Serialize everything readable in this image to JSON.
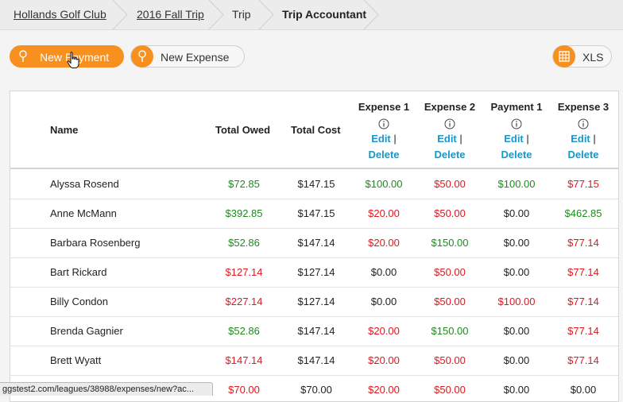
{
  "breadcrumb": {
    "items": [
      {
        "label": "Hollands Golf Club"
      },
      {
        "label": "2016 Fall Trip"
      },
      {
        "label": "Trip"
      },
      {
        "label": "Trip Accountant"
      }
    ]
  },
  "actions": {
    "new_payment": "New Payment",
    "new_expense": "New Expense",
    "xls": "XLS"
  },
  "colors": {
    "accent": "#f7901e",
    "link": "#1a96c9",
    "positive": "#1d8a1d",
    "negative": "#e0171f"
  },
  "table": {
    "headers": {
      "name": "Name",
      "total_owed": "Total Owed",
      "total_cost": "Total Cost"
    },
    "expense_columns": [
      {
        "title": "Expense 1",
        "edit": "Edit",
        "sep": "|",
        "delete": "Delete"
      },
      {
        "title": "Expense 2",
        "edit": "Edit",
        "sep": "|",
        "delete": "Delete"
      },
      {
        "title": "Payment 1",
        "edit": "Edit",
        "sep": "|",
        "delete": "Delete"
      },
      {
        "title": "Expense 3",
        "edit": "Edit",
        "sep": "|",
        "delete": "Delete"
      }
    ],
    "rows": [
      {
        "name": "Alyssa Rosend",
        "owed": "$72.85",
        "owed_color": "green",
        "cost": "$147.15",
        "vals": [
          [
            "$100.00",
            "green"
          ],
          [
            "$50.00",
            "red"
          ],
          [
            "$100.00",
            "green"
          ],
          [
            "$77.15",
            "red"
          ]
        ]
      },
      {
        "name": "Anne McMann",
        "owed": "$392.85",
        "owed_color": "green",
        "cost": "$147.15",
        "vals": [
          [
            "$20.00",
            "red"
          ],
          [
            "$50.00",
            "red"
          ],
          [
            "$0.00",
            "black"
          ],
          [
            "$462.85",
            "green"
          ]
        ]
      },
      {
        "name": "Barbara Rosenberg",
        "owed": "$52.86",
        "owed_color": "green",
        "cost": "$147.14",
        "vals": [
          [
            "$20.00",
            "red"
          ],
          [
            "$150.00",
            "green"
          ],
          [
            "$0.00",
            "black"
          ],
          [
            "$77.14",
            "red"
          ]
        ]
      },
      {
        "name": "Bart Rickard",
        "owed": "$127.14",
        "owed_color": "red",
        "cost": "$127.14",
        "vals": [
          [
            "$0.00",
            "black"
          ],
          [
            "$50.00",
            "red"
          ],
          [
            "$0.00",
            "black"
          ],
          [
            "$77.14",
            "red"
          ]
        ]
      },
      {
        "name": "Billy Condon",
        "owed": "$227.14",
        "owed_color": "red",
        "cost": "$127.14",
        "vals": [
          [
            "$0.00",
            "black"
          ],
          [
            "$50.00",
            "red"
          ],
          [
            "$100.00",
            "red"
          ],
          [
            "$77.14",
            "red"
          ]
        ]
      },
      {
        "name": "Brenda Gagnier",
        "owed": "$52.86",
        "owed_color": "green",
        "cost": "$147.14",
        "vals": [
          [
            "$20.00",
            "red"
          ],
          [
            "$150.00",
            "green"
          ],
          [
            "$0.00",
            "black"
          ],
          [
            "$77.14",
            "red"
          ]
        ]
      },
      {
        "name": "Brett Wyatt",
        "owed": "$147.14",
        "owed_color": "red",
        "cost": "$147.14",
        "vals": [
          [
            "$20.00",
            "red"
          ],
          [
            "$50.00",
            "red"
          ],
          [
            "$0.00",
            "black"
          ],
          [
            "$77.14",
            "red"
          ]
        ]
      },
      {
        "name": "",
        "owed": "$70.00",
        "owed_color": "red",
        "cost": "$70.00",
        "vals": [
          [
            "$20.00",
            "red"
          ],
          [
            "$50.00",
            "red"
          ],
          [
            "$0.00",
            "black"
          ],
          [
            "$0.00",
            "black"
          ]
        ]
      }
    ]
  },
  "status_bar": {
    "url": "ggstest2.com/leagues/38988/expenses/new?ac..."
  }
}
